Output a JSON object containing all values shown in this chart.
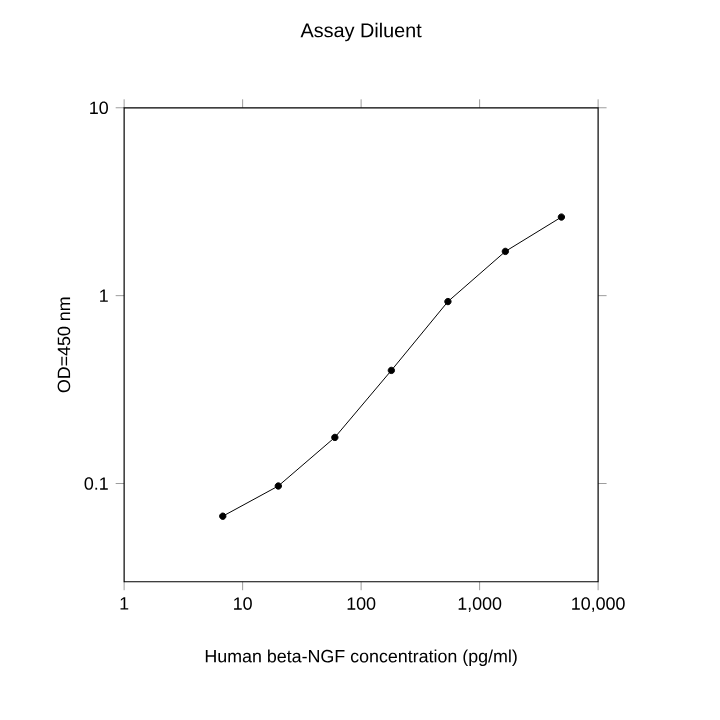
{
  "chart_data": {
    "type": "line",
    "title": "Assay Diluent",
    "xlabel": "Human beta-NGF concentration (pg/ml)",
    "ylabel": "OD=450 nm",
    "log": "xy",
    "marker": "circle",
    "line_style": "solid",
    "grid": false,
    "xlim": [
      1,
      10000
    ],
    "ylim": [
      0.03,
      10
    ],
    "xticks": [
      1,
      10,
      100,
      {
        "value": 1000,
        "label": "1,000"
      },
      {
        "value": 10000,
        "label": "10,000"
      }
    ],
    "yticks": [
      0.1,
      1,
      10
    ],
    "series": [
      {
        "color": "#000000",
        "x": [
          6.8,
          20,
          60,
          180,
          540,
          1650,
          4900
        ],
        "values": [
          0.067,
          0.097,
          0.176,
          0.4,
          0.93,
          1.72,
          2.62
        ]
      }
    ]
  }
}
